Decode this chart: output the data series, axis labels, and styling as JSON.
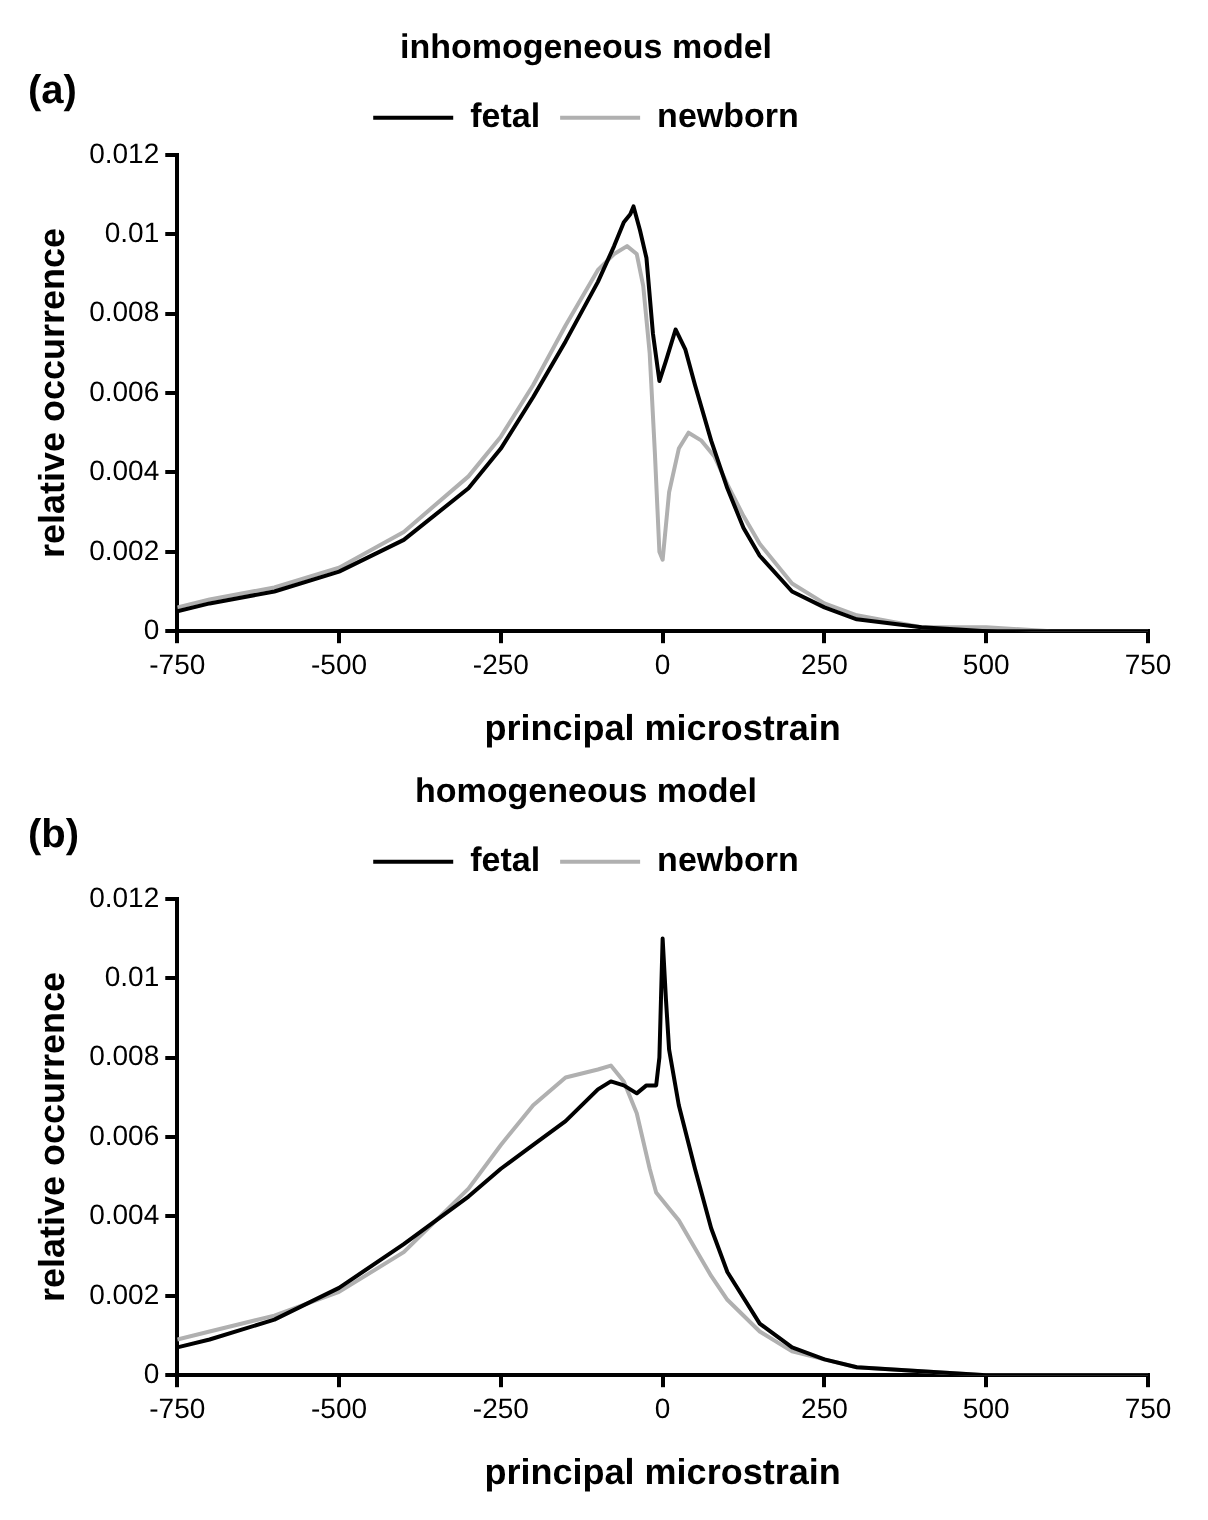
{
  "chart_data": [
    {
      "type": "line",
      "title": "inhomogeneous model",
      "xlabel": "principal microstrain",
      "ylabel": "relative occurrence",
      "annotations": [
        "(a)"
      ],
      "xlim": [
        -750,
        750
      ],
      "xticks": [
        -750,
        -500,
        -250,
        0,
        250,
        500,
        750
      ],
      "ylim": [
        0,
        0.012
      ],
      "yticks": [
        0,
        0.002,
        0.004,
        0.006,
        0.008,
        0.01,
        0.012
      ],
      "grid": false,
      "legend": "top",
      "marker": "none",
      "line_style": "solid",
      "series": [
        {
          "name": "fetal",
          "color": "#000000",
          "x": [
            -750,
            -700,
            -600,
            -500,
            -400,
            -300,
            -250,
            -200,
            -150,
            -100,
            -75,
            -60,
            -50,
            -45,
            -35,
            -25,
            -15,
            -5,
            5,
            20,
            35,
            50,
            75,
            100,
            125,
            150,
            200,
            250,
            300,
            400,
            500,
            600,
            750
          ],
          "values": [
            0.0005,
            0.0007,
            0.001,
            0.0015,
            0.0023,
            0.0036,
            0.0046,
            0.0059,
            0.0073,
            0.0088,
            0.0097,
            0.0103,
            0.0105,
            0.0107,
            0.0101,
            0.0094,
            0.0075,
            0.0063,
            0.0068,
            0.0076,
            0.0071,
            0.0062,
            0.0048,
            0.0036,
            0.0026,
            0.0019,
            0.001,
            0.0006,
            0.0003,
            0.0001,
            0,
            0,
            0
          ]
        },
        {
          "name": "newborn",
          "color": "#b0b0b0",
          "x": [
            -750,
            -700,
            -600,
            -500,
            -400,
            -300,
            -250,
            -200,
            -150,
            -100,
            -75,
            -55,
            -40,
            -30,
            -20,
            -12,
            -5,
            0,
            10,
            25,
            40,
            60,
            80,
            100,
            125,
            150,
            200,
            250,
            300,
            400,
            500,
            600,
            750
          ],
          "values": [
            0.0006,
            0.0008,
            0.0011,
            0.0016,
            0.0025,
            0.0039,
            0.0049,
            0.0062,
            0.0077,
            0.0091,
            0.0095,
            0.0097,
            0.0095,
            0.0087,
            0.007,
            0.0045,
            0.002,
            0.0018,
            0.0035,
            0.0046,
            0.005,
            0.0048,
            0.0044,
            0.0037,
            0.0029,
            0.0022,
            0.0012,
            0.0007,
            0.0004,
            0.0001,
            0.0001,
            0,
            0
          ]
        }
      ]
    },
    {
      "type": "line",
      "title": "homogeneous model",
      "xlabel": "principal microstrain",
      "ylabel": "relative occurrence",
      "annotations": [
        "(b)"
      ],
      "xlim": [
        -750,
        750
      ],
      "xticks": [
        -750,
        -500,
        -250,
        0,
        250,
        500,
        750
      ],
      "ylim": [
        0,
        0.012
      ],
      "yticks": [
        0,
        0.002,
        0.004,
        0.006,
        0.008,
        0.01,
        0.012
      ],
      "grid": false,
      "legend": "top",
      "marker": "none",
      "line_style": "solid",
      "series": [
        {
          "name": "fetal",
          "color": "#000000",
          "x": [
            -750,
            -700,
            -600,
            -500,
            -400,
            -300,
            -250,
            -200,
            -150,
            -100,
            -80,
            -60,
            -40,
            -25,
            -10,
            -5,
            0,
            5,
            10,
            25,
            50,
            75,
            100,
            150,
            200,
            250,
            300,
            400,
            500,
            750
          ],
          "values": [
            0.0007,
            0.0009,
            0.0014,
            0.0022,
            0.0033,
            0.0045,
            0.0052,
            0.0058,
            0.0064,
            0.0072,
            0.0074,
            0.0073,
            0.0071,
            0.0073,
            0.0073,
            0.008,
            0.011,
            0.0095,
            0.0082,
            0.0068,
            0.0052,
            0.0037,
            0.0026,
            0.0013,
            0.0007,
            0.0004,
            0.0002,
            0.0001,
            0,
            0
          ]
        },
        {
          "name": "newborn",
          "color": "#b0b0b0",
          "x": [
            -750,
            -700,
            -600,
            -500,
            -400,
            -300,
            -250,
            -200,
            -150,
            -100,
            -80,
            -60,
            -40,
            -20,
            -10,
            0,
            10,
            25,
            50,
            75,
            100,
            150,
            200,
            250,
            300,
            400,
            500,
            750
          ],
          "values": [
            0.0009,
            0.0011,
            0.0015,
            0.0021,
            0.0031,
            0.0047,
            0.0058,
            0.0068,
            0.0075,
            0.0077,
            0.0078,
            0.0074,
            0.0066,
            0.0052,
            0.0046,
            0.0044,
            0.0042,
            0.0039,
            0.0032,
            0.0025,
            0.0019,
            0.0011,
            0.0006,
            0.0004,
            0.0002,
            0.0001,
            0,
            0
          ]
        }
      ]
    }
  ]
}
